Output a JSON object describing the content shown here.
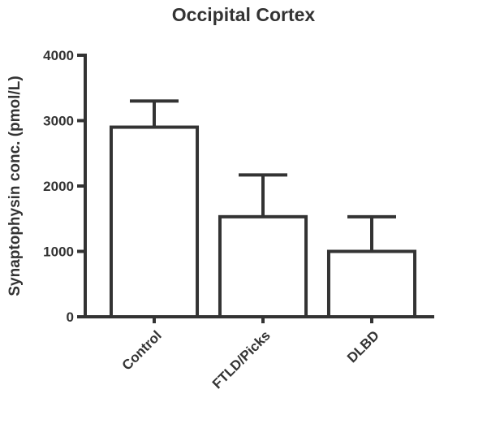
{
  "chart_data": {
    "type": "bar",
    "title": "Occipital Cortex",
    "y_label": "Synaptophysin conc. (pmol/L)",
    "categories": [
      "Control",
      "FTLD/Picks",
      "DLBD"
    ],
    "values": [
      2900,
      1530,
      1000
    ],
    "errors": [
      400,
      640,
      530
    ],
    "color": "#ffffff",
    "edge_color": "#333333",
    "ylim": [
      0,
      4000
    ],
    "yticks": [
      0,
      1000,
      2000,
      3000,
      4000
    ],
    "grid": false
  }
}
